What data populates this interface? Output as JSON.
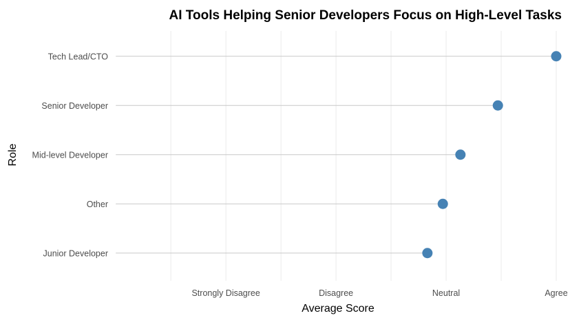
{
  "chart_data": {
    "type": "scatter",
    "title": "AI Tools Helping Senior Developers Focus on High-Level Tasks",
    "xlabel": "Average Score",
    "ylabel": "Role",
    "x_tick_labels": [
      "Strongly Disagree",
      "Disagree",
      "Neutral",
      "Agree"
    ],
    "x_tick_values": [
      1,
      2,
      3,
      4
    ],
    "xlim": [
      -0.02,
      4.05
    ],
    "categories": [
      "Tech Lead/CTO",
      "Senior Developer",
      "Mid-level Developer",
      "Other",
      "Junior Developer"
    ],
    "values": [
      4.0,
      3.47,
      3.13,
      2.97,
      2.83
    ],
    "point_color": "#4682B4",
    "segment_color": "#c8c8c8",
    "grid": true,
    "grid_color": "#ebebeb"
  }
}
